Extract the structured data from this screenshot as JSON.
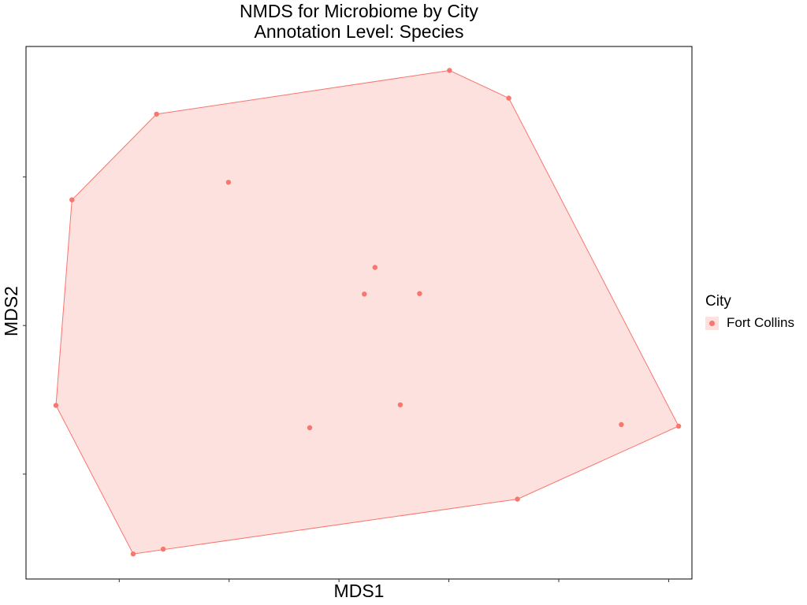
{
  "chart_data": {
    "type": "scatter",
    "title": "NMDS for Microbiome by City",
    "subtitle": "Annotation Level: Species",
    "xlabel": "MDS1",
    "ylabel": "MDS2",
    "xlim": [
      0,
      100
    ],
    "ylim": [
      0,
      100
    ],
    "grid": false,
    "legend_placement": "right",
    "legend_title": "City",
    "colors": {
      "series": "#f8766d",
      "hull_fill": "#fde1de",
      "frame": "#000000"
    },
    "hull": true,
    "series": [
      {
        "name": "Fort Collins",
        "points": [
          {
            "x": 63.6,
            "y": 95.5
          },
          {
            "x": 72.5,
            "y": 90.3
          },
          {
            "x": 98.0,
            "y": 28.7
          },
          {
            "x": 73.8,
            "y": 15.0
          },
          {
            "x": 20.6,
            "y": 5.6
          },
          {
            "x": 16.1,
            "y": 4.7
          },
          {
            "x": 4.5,
            "y": 32.6
          },
          {
            "x": 6.9,
            "y": 71.2
          },
          {
            "x": 19.6,
            "y": 87.3
          },
          {
            "x": 30.4,
            "y": 74.5
          },
          {
            "x": 52.4,
            "y": 58.5
          },
          {
            "x": 50.8,
            "y": 53.5
          },
          {
            "x": 59.1,
            "y": 53.6
          },
          {
            "x": 56.2,
            "y": 32.7
          },
          {
            "x": 42.6,
            "y": 28.4
          },
          {
            "x": 89.4,
            "y": 29.0
          }
        ]
      }
    ]
  }
}
